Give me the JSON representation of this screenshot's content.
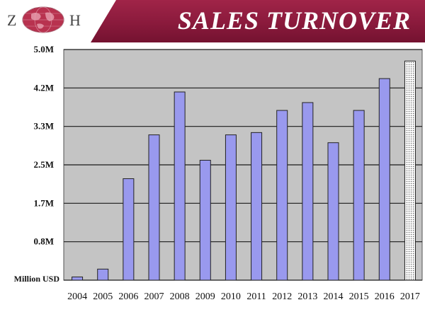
{
  "header": {
    "logo": {
      "left_letter": "Z",
      "right_letter": "H"
    },
    "title": "SALES TURNOVER"
  },
  "colors": {
    "banner": "#8a1a3c",
    "bar_fill": "#9999ee",
    "bar_stroke": "#222222",
    "plot_background": "#c4c4c4",
    "forecast_fill": "#e8e8e8"
  },
  "chart_data": {
    "type": "bar",
    "title": "SALES TURNOVER",
    "ylabel": "Million USD",
    "categories": [
      "2004",
      "2005",
      "2006",
      "2007",
      "2008",
      "2009",
      "2010",
      "2011",
      "2012",
      "2013",
      "2014",
      "2015",
      "2016",
      "2017"
    ],
    "values": [
      0.07,
      0.24,
      2.2,
      3.15,
      4.08,
      2.6,
      3.15,
      3.2,
      3.68,
      3.85,
      2.98,
      3.68,
      4.37,
      4.75
    ],
    "forecast_index": 13,
    "yticks": [
      {
        "value": 0.0,
        "label": "Million USD"
      },
      {
        "value": 0.833,
        "label": "0.8M"
      },
      {
        "value": 1.667,
        "label": "1.7M"
      },
      {
        "value": 2.5,
        "label": "2.5M"
      },
      {
        "value": 3.333,
        "label": "3.3M"
      },
      {
        "value": 4.167,
        "label": "4.2M"
      },
      {
        "value": 5.0,
        "label": "5.0M"
      }
    ],
    "ylim": [
      0,
      5.0
    ],
    "grid": true,
    "legend": "none"
  }
}
